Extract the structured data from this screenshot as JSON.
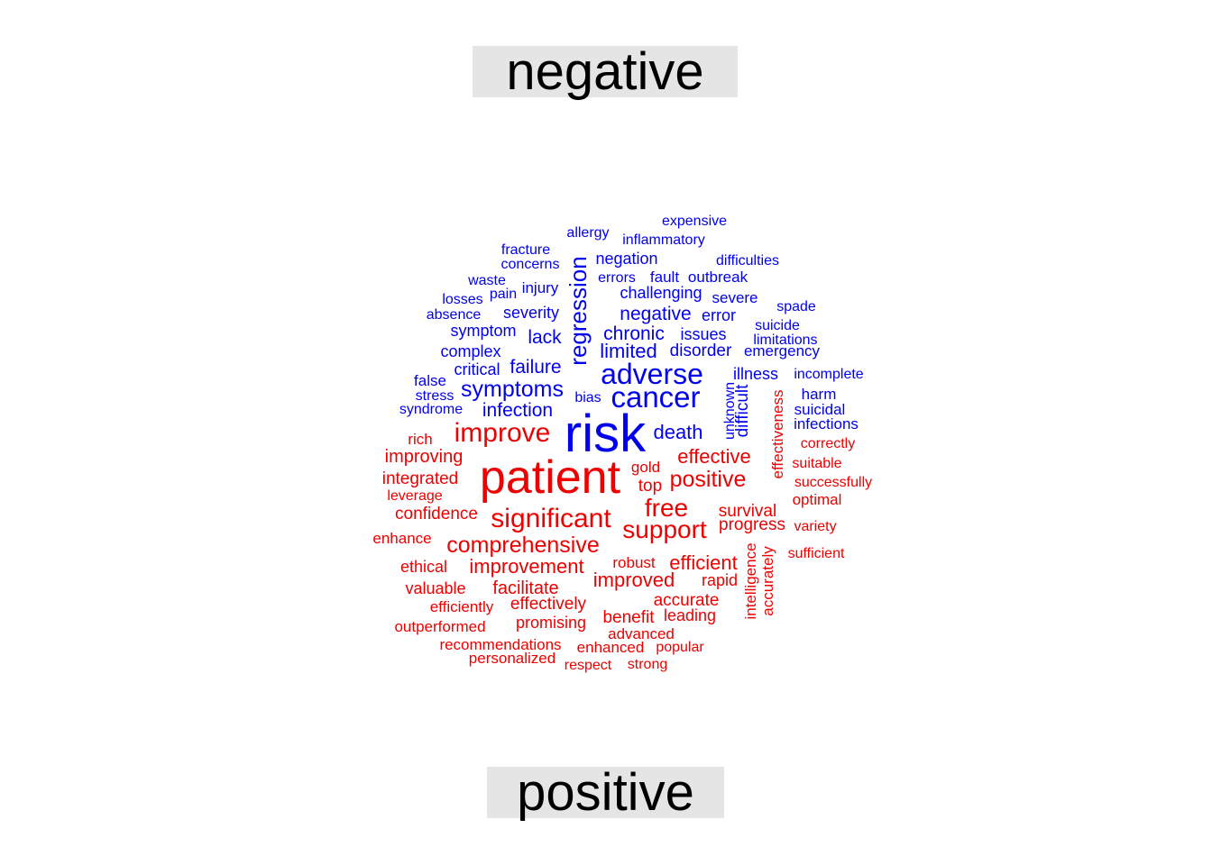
{
  "colors": {
    "negative": "#0000ee",
    "positive": "#ee0000",
    "label_bg": "#e5e5e5"
  },
  "labels": {
    "negative": "negative",
    "positive": "positive"
  },
  "negative_words": [
    "expensive",
    "allergy",
    "inflammatory",
    "fracture",
    "concerns",
    "negation",
    "difficulties",
    "waste",
    "errors",
    "fault",
    "outbreak",
    "losses",
    "pain",
    "injury",
    "challenging",
    "severe",
    "spade",
    "absence",
    "severity",
    "negative",
    "error",
    "suicide",
    "symptom",
    "chronic",
    "issues",
    "limitations",
    "lack",
    "complex",
    "limited",
    "disorder",
    "emergency",
    "regression",
    "critical",
    "failure",
    "adverse",
    "illness",
    "incomplete",
    "false",
    "symptoms",
    "stress",
    "cancer",
    "bias",
    "harm",
    "syndrome",
    "infection",
    "suicidal",
    "infections",
    "unknown",
    "difficult",
    "risk",
    "death"
  ],
  "positive_words": [
    "improve",
    "rich",
    "correctly",
    "improving",
    "effectiveness",
    "effective",
    "patient",
    "gold",
    "suitable",
    "integrated",
    "positive",
    "successfully",
    "top",
    "leverage",
    "optimal",
    "free",
    "confidence",
    "survival",
    "significant",
    "variety",
    "progress",
    "support",
    "enhance",
    "comprehensive",
    "sufficient",
    "robust",
    "ethical",
    "improvement",
    "efficient",
    "intelligence",
    "accurately",
    "improved",
    "rapid",
    "valuable",
    "facilitate",
    "efficiently",
    "effectively",
    "accurate",
    "leading",
    "benefit",
    "promising",
    "outperformed",
    "advanced",
    "recommendations",
    "enhanced",
    "popular",
    "personalized",
    "respect",
    "strong"
  ]
}
